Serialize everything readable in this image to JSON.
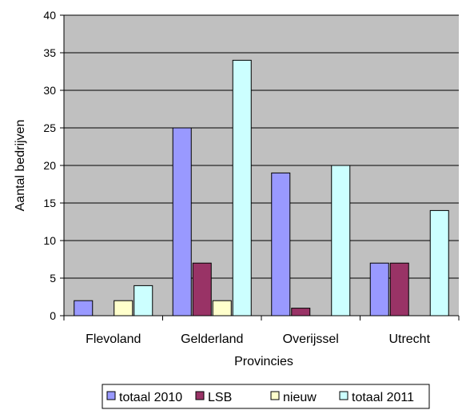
{
  "chart_data": {
    "type": "bar",
    "title": "",
    "xlabel": "Provincies",
    "ylabel": "Aantal bedrijven",
    "ylim": [
      0,
      40
    ],
    "yticks": [
      0,
      5,
      10,
      15,
      20,
      25,
      30,
      35,
      40
    ],
    "categories": [
      "Flevoland",
      "Gelderland",
      "Overijssel",
      "Utrecht"
    ],
    "series": [
      {
        "name": "totaal 2010",
        "color": "#9999ff",
        "values": [
          2,
          25,
          19,
          7
        ]
      },
      {
        "name": "LSB",
        "color": "#993366",
        "values": [
          0,
          7,
          1,
          7
        ]
      },
      {
        "name": "nieuw",
        "color": "#ffffcc",
        "values": [
          2,
          2,
          0,
          0
        ]
      },
      {
        "name": "totaal 2011",
        "color": "#ccffff",
        "values": [
          4,
          34,
          20,
          14
        ]
      }
    ],
    "plot_background": "#c0c0c0",
    "grid": true,
    "legend": "bottom"
  }
}
